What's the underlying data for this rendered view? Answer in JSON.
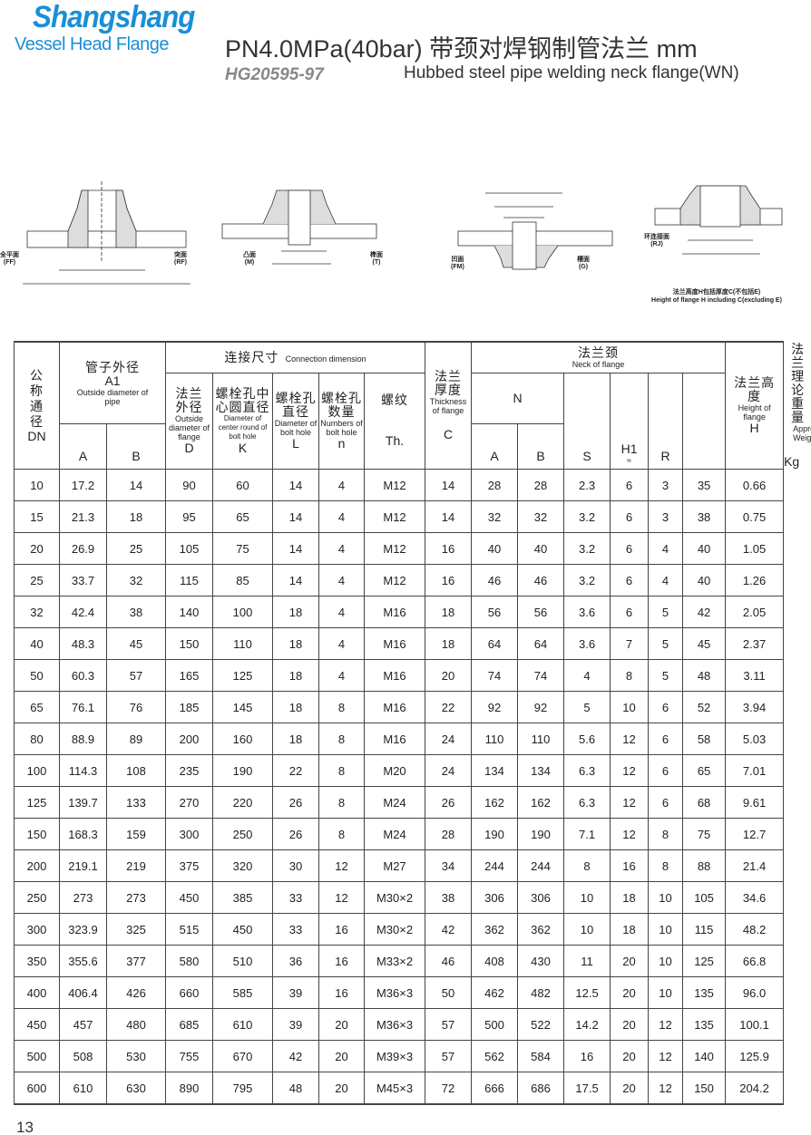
{
  "header": {
    "brand": "Shangshang",
    "brand_sub": "Vessel Head Flange",
    "title": "PN4.0MPa(40bar) 带颈对焊钢制管法兰  mm",
    "standard": "HG20595-97",
    "title_en": "Hubbed steel pipe welding neck flange(WN)"
  },
  "diagrams": {
    "ff": "全平面\n(FF)",
    "rf": "突面\n(RF)",
    "m": "凸面\n(M)",
    "t": "榫面\n(T)",
    "fm": "凹面\n(FM)",
    "g": "槽面\n(G)",
    "rj": "环连接面\n(RJ)",
    "note_zh": "法兰高度H包括厚度C(不包括E)",
    "note_en": "Height of flange H including C(excluding E)"
  },
  "table": {
    "dn": {
      "zh": "公\n称\n通\n径",
      "en": "DN"
    },
    "pipe": {
      "zh": "管子外径",
      "sym": "A1",
      "en": "Outside diameter of pipe",
      "A": "A",
      "B": "B"
    },
    "conn": {
      "zh": "连接尺寸",
      "en": "Connection dimension"
    },
    "D": {
      "zh": "法兰外径",
      "en": "Outside diameter of flange",
      "sym": "D"
    },
    "K": {
      "zh": "螺栓孔中心圆直径",
      "en": "Diameter of center round of bolt hole",
      "sym": "K"
    },
    "L": {
      "zh": "螺栓孔直径",
      "en": "Diameter of bolt hole",
      "sym": "L"
    },
    "n": {
      "zh": "螺栓孔数量",
      "en": "Numbers of bolt hole",
      "sym": "n"
    },
    "Th": {
      "zh": "螺纹",
      "sym": "Th."
    },
    "C": {
      "zh": "法兰厚度",
      "en": "Thickness of flange",
      "sym": "C"
    },
    "neck": {
      "zh": "法兰颈",
      "en": "Neck of flange",
      "N": "N",
      "A": "A",
      "B": "B",
      "S": "S",
      "H1": "H1",
      "approx": "≈",
      "R": "R"
    },
    "H": {
      "zh": "法兰高度",
      "en": "Height of flange",
      "sym": "H"
    },
    "W": {
      "zh": "法兰理论重量",
      "en": "Approx. Weight",
      "sym": "Kg"
    },
    "rows": [
      [
        "10",
        "17.2",
        "14",
        "90",
        "60",
        "14",
        "4",
        "M12",
        "14",
        "28",
        "28",
        "2.3",
        "6",
        "3",
        "35",
        "0.66"
      ],
      [
        "15",
        "21.3",
        "18",
        "95",
        "65",
        "14",
        "4",
        "M12",
        "14",
        "32",
        "32",
        "3.2",
        "6",
        "3",
        "38",
        "0.75"
      ],
      [
        "20",
        "26.9",
        "25",
        "105",
        "75",
        "14",
        "4",
        "M12",
        "16",
        "40",
        "40",
        "3.2",
        "6",
        "4",
        "40",
        "1.05"
      ],
      [
        "25",
        "33.7",
        "32",
        "115",
        "85",
        "14",
        "4",
        "M12",
        "16",
        "46",
        "46",
        "3.2",
        "6",
        "4",
        "40",
        "1.26"
      ],
      [
        "32",
        "42.4",
        "38",
        "140",
        "100",
        "18",
        "4",
        "M16",
        "18",
        "56",
        "56",
        "3.6",
        "6",
        "5",
        "42",
        "2.05"
      ],
      [
        "40",
        "48.3",
        "45",
        "150",
        "110",
        "18",
        "4",
        "M16",
        "18",
        "64",
        "64",
        "3.6",
        "7",
        "5",
        "45",
        "2.37"
      ],
      [
        "50",
        "60.3",
        "57",
        "165",
        "125",
        "18",
        "4",
        "M16",
        "20",
        "74",
        "74",
        "4",
        "8",
        "5",
        "48",
        "3.11"
      ],
      [
        "65",
        "76.1",
        "76",
        "185",
        "145",
        "18",
        "8",
        "M16",
        "22",
        "92",
        "92",
        "5",
        "10",
        "6",
        "52",
        "3.94"
      ],
      [
        "80",
        "88.9",
        "89",
        "200",
        "160",
        "18",
        "8",
        "M16",
        "24",
        "110",
        "110",
        "5.6",
        "12",
        "6",
        "58",
        "5.03"
      ],
      [
        "100",
        "114.3",
        "108",
        "235",
        "190",
        "22",
        "8",
        "M20",
        "24",
        "134",
        "134",
        "6.3",
        "12",
        "6",
        "65",
        "7.01"
      ],
      [
        "125",
        "139.7",
        "133",
        "270",
        "220",
        "26",
        "8",
        "M24",
        "26",
        "162",
        "162",
        "6.3",
        "12",
        "6",
        "68",
        "9.61"
      ],
      [
        "150",
        "168.3",
        "159",
        "300",
        "250",
        "26",
        "8",
        "M24",
        "28",
        "190",
        "190",
        "7.1",
        "12",
        "8",
        "75",
        "12.7"
      ],
      [
        "200",
        "219.1",
        "219",
        "375",
        "320",
        "30",
        "12",
        "M27",
        "34",
        "244",
        "244",
        "8",
        "16",
        "8",
        "88",
        "21.4"
      ],
      [
        "250",
        "273",
        "273",
        "450",
        "385",
        "33",
        "12",
        "M30×2",
        "38",
        "306",
        "306",
        "10",
        "18",
        "10",
        "105",
        "34.6"
      ],
      [
        "300",
        "323.9",
        "325",
        "515",
        "450",
        "33",
        "16",
        "M30×2",
        "42",
        "362",
        "362",
        "10",
        "18",
        "10",
        "115",
        "48.2"
      ],
      [
        "350",
        "355.6",
        "377",
        "580",
        "510",
        "36",
        "16",
        "M33×2",
        "46",
        "408",
        "430",
        "11",
        "20",
        "10",
        "125",
        "66.8"
      ],
      [
        "400",
        "406.4",
        "426",
        "660",
        "585",
        "39",
        "16",
        "M36×3",
        "50",
        "462",
        "482",
        "12.5",
        "20",
        "10",
        "135",
        "96.0"
      ],
      [
        "450",
        "457",
        "480",
        "685",
        "610",
        "39",
        "20",
        "M36×3",
        "57",
        "500",
        "522",
        "14.2",
        "20",
        "12",
        "135",
        "100.1"
      ],
      [
        "500",
        "508",
        "530",
        "755",
        "670",
        "42",
        "20",
        "M39×3",
        "57",
        "562",
        "584",
        "16",
        "20",
        "12",
        "140",
        "125.9"
      ],
      [
        "600",
        "610",
        "630",
        "890",
        "795",
        "48",
        "20",
        "M45×3",
        "72",
        "666",
        "686",
        "17.5",
        "20",
        "12",
        "150",
        "204.2"
      ]
    ]
  },
  "footer": {
    "page": "13"
  }
}
